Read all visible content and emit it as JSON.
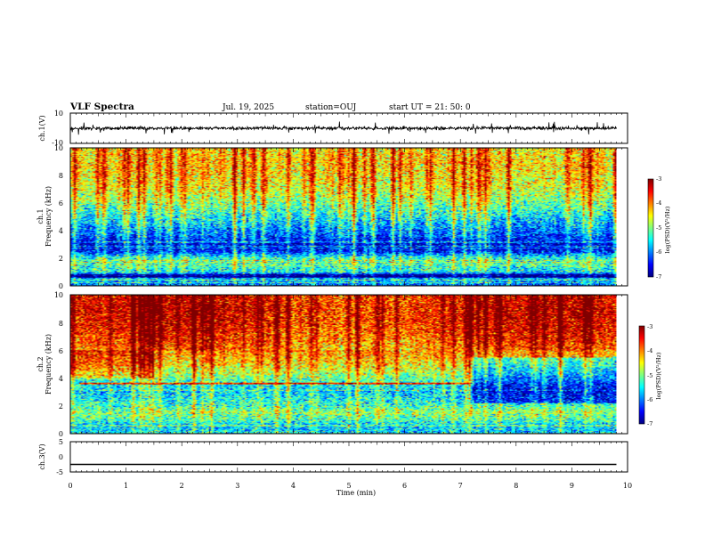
{
  "header": {
    "title": "VLF Spectra",
    "date": "Jul. 19, 2025",
    "station": "station=OUJ",
    "start": "start UT =  21: 50: 0"
  },
  "colors": {
    "spectrogram_scale": [
      "#00007f",
      "#0000ff",
      "#007fff",
      "#00ffff",
      "#7fff7f",
      "#ffff00",
      "#ff7f00",
      "#ff0000",
      "#7f0000"
    ],
    "waveform": "#000000",
    "axis": "#000000"
  },
  "chart_data": [
    {
      "type": "line",
      "panel": "ch.1 waveform",
      "ylabel": "ch.1(V)",
      "ylim": [
        -10,
        10
      ],
      "yticks": [
        "10",
        "-10"
      ],
      "x_range_min": [
        0,
        10
      ],
      "series": [
        {
          "values_summary": "noisy signal around 0 V, amplitude about ±1 V with spikes to ±2 V"
        }
      ]
    },
    {
      "type": "heatmap",
      "panel": "ch.1 spectrogram",
      "ylabel": [
        "ch.1",
        "Frequency (kHz)"
      ],
      "ylim": [
        0,
        10
      ],
      "yticks": [
        "0",
        "2",
        "4",
        "6",
        "8",
        "10"
      ],
      "x_range_min": [
        0,
        10
      ],
      "data_extent_min": 9.8,
      "colorbar": {
        "label": "log(PSD)(V²/Hz)",
        "ticks": [
          "-3",
          "-4",
          "-5",
          "-6",
          "-7"
        ],
        "range": [
          -7,
          -3
        ]
      },
      "profile": {
        "freq_khz": [
          0,
          0.5,
          0.7,
          1,
          1.5,
          2,
          2.5,
          3,
          3.5,
          4,
          5,
          6,
          7,
          8,
          9,
          10
        ],
        "log_psd": [
          -6.2,
          -5.8,
          -7.0,
          -5.6,
          -5.4,
          -5.5,
          -6.6,
          -6.8,
          -6.4,
          -6.2,
          -5.7,
          -5.2,
          -4.8,
          -4.6,
          -4.5,
          -4.6
        ]
      }
    },
    {
      "type": "heatmap",
      "panel": "ch.2 spectrogram",
      "ylabel": [
        "ch.2",
        "Frequency (kHz)"
      ],
      "ylim": [
        0,
        10
      ],
      "yticks": [
        "0",
        "2",
        "4",
        "6",
        "8",
        "10"
      ],
      "x_range_min": [
        0,
        10
      ],
      "data_extent_min": 9.8,
      "colorbar": {
        "label": "log(PSD)(V²/Hz)",
        "ticks": [
          "-3",
          "-4",
          "-5",
          "-6",
          "-7"
        ],
        "range": [
          -7,
          -3
        ]
      },
      "profile": {
        "freq_khz": [
          0,
          0.5,
          1,
          1.5,
          2,
          2.5,
          3,
          3.5,
          4,
          5,
          6,
          7,
          8,
          9,
          10
        ],
        "log_psd": [
          -5.6,
          -5.8,
          -5.3,
          -5.0,
          -5.4,
          -5.6,
          -5.8,
          -5.6,
          -5.2,
          -4.6,
          -4.2,
          -3.9,
          -3.7,
          -3.6,
          -3.7
        ]
      },
      "line_3_6khz_end_min": 7.2
    },
    {
      "type": "line",
      "panel": "ch.3 waveform",
      "ylabel": "ch.3(V)",
      "ylim": [
        -5,
        5
      ],
      "yticks": [
        "5",
        "0",
        "-5"
      ],
      "x_range_min": [
        0,
        10
      ],
      "series": [
        {
          "values_summary": "constant at about -2.5 V"
        }
      ],
      "constant_value": -2.5
    }
  ],
  "xaxis": {
    "label": "Time (min)",
    "ticks": [
      "0",
      "1",
      "2",
      "3",
      "4",
      "5",
      "6",
      "7",
      "8",
      "9",
      "10"
    ]
  }
}
